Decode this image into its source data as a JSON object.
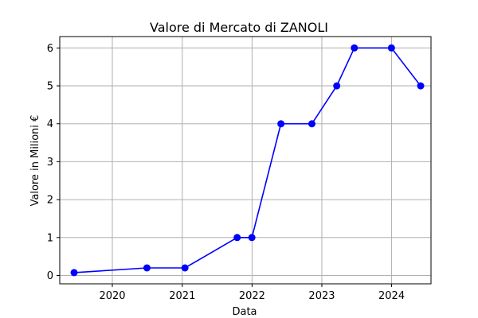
{
  "chart_data": {
    "type": "line",
    "title": "Valore di Mercato di ZANOLI",
    "xlabel": "Data",
    "ylabel": "Valore in Milioni €",
    "x_ticks": [
      "2020",
      "2021",
      "2022",
      "2023",
      "2024"
    ],
    "y_ticks": [
      "0",
      "1",
      "2",
      "3",
      "4",
      "5",
      "6"
    ],
    "x": [
      "2019-06-15",
      "2020-06-30",
      "2021-01-15",
      "2021-10-15",
      "2021-12-31",
      "2022-06-01",
      "2022-11-10",
      "2023-03-20",
      "2023-06-20",
      "2023-12-31",
      "2024-06-01"
    ],
    "values": [
      0.075,
      0.2,
      0.2,
      1,
      1,
      4,
      4,
      5,
      6,
      6,
      5
    ],
    "xlim": [
      "2019-04-01",
      "2024-07-25"
    ],
    "ylim": [
      -0.22,
      6.3
    ],
    "grid": true,
    "legend": "none",
    "colors": {
      "line": "#0000ff",
      "marker": "#0000ff",
      "grid": "#b0b0b0",
      "axes": "#000000"
    }
  }
}
